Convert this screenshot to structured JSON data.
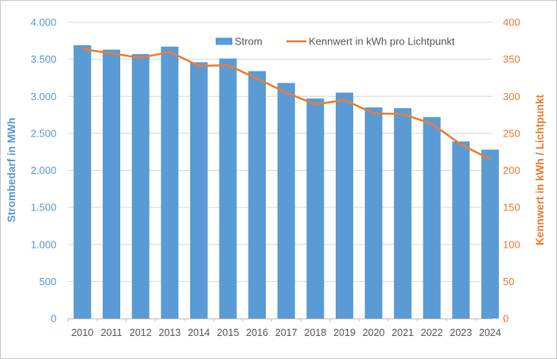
{
  "chart_data": {
    "type": "combo-bar-line",
    "title": "",
    "categories": [
      "2010",
      "2011",
      "2012",
      "2013",
      "2014",
      "2015",
      "2016",
      "2017",
      "2018",
      "2019",
      "2020",
      "2021",
      "2022",
      "2023",
      "2024"
    ],
    "series": [
      {
        "name": "Strom",
        "type": "bar",
        "axis": "left",
        "color": "#5B9BD5",
        "values": [
          3690,
          3630,
          3570,
          3670,
          3460,
          3510,
          3340,
          3180,
          2970,
          3050,
          2850,
          2840,
          2720,
          2390,
          2280
        ]
      },
      {
        "name": "Kennwert in kWh pro Lichtpunkt",
        "type": "line",
        "axis": "right",
        "color": "#ED7D31",
        "values": [
          364,
          358,
          352,
          360,
          341,
          342,
          324,
          305,
          289,
          295,
          277,
          276,
          263,
          235,
          215
        ]
      }
    ],
    "left_axis": {
      "label": "Strombedarf in MWh",
      "color": "#5B9BD5",
      "min": 0,
      "max": 4000,
      "step": 500,
      "tick_labels": [
        "0",
        "500",
        "1.000",
        "1.500",
        "2.000",
        "2.500",
        "3.000",
        "3.500",
        "4.000"
      ]
    },
    "right_axis": {
      "label": "Kennwert in kWh / Lichtpunkt",
      "color": "#ED7D31",
      "min": 0,
      "max": 400,
      "step": 50,
      "tick_labels": [
        "0",
        "50",
        "100",
        "150",
        "200",
        "250",
        "300",
        "350",
        "400"
      ]
    },
    "x_axis": {
      "label_color": "#595959"
    },
    "legend": {
      "position": "top",
      "entries": [
        "Strom",
        "Kennwert in kWh pro Lichtpunkt"
      ],
      "text_color": "#595959"
    },
    "grid": {
      "line_color": "#D9D9D9",
      "axis_line_color": "#BFBFBF"
    }
  }
}
